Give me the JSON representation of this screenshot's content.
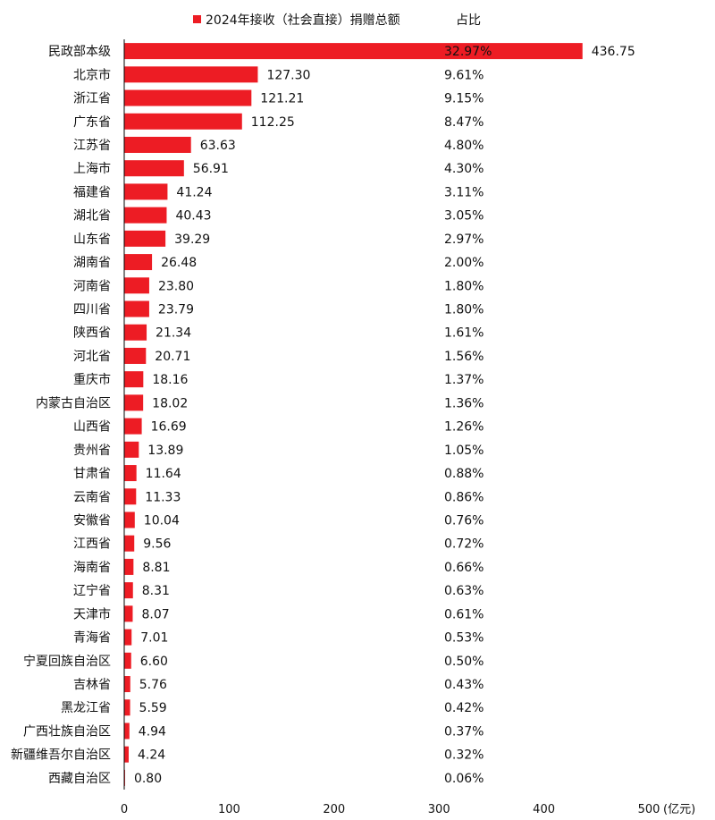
{
  "chart_data": {
    "type": "bar",
    "orientation": "horizontal",
    "legend": {
      "series_label": "2024年接收（社会直接）捐赠总额",
      "share_label": "占比",
      "position": "top"
    },
    "categories": [
      "民政部本级",
      "北京市",
      "浙江省",
      "广东省",
      "江苏省",
      "上海市",
      "福建省",
      "湖北省",
      "山东省",
      "湖南省",
      "河南省",
      "四川省",
      "陕西省",
      "河北省",
      "重庆市",
      "内蒙古自治区",
      "山西省",
      "贵州省",
      "甘肃省",
      "云南省",
      "安徽省",
      "江西省",
      "海南省",
      "辽宁省",
      "天津市",
      "青海省",
      "宁夏回族自治区",
      "吉林省",
      "黑龙江省",
      "广西壮族自治区",
      "新疆维吾尔自治区",
      "西藏自治区"
    ],
    "values": [
      436.75,
      127.3,
      121.21,
      112.25,
      63.63,
      56.91,
      41.24,
      40.43,
      39.29,
      26.48,
      23.8,
      23.79,
      21.34,
      20.71,
      18.16,
      18.02,
      16.69,
      13.89,
      11.64,
      11.33,
      10.04,
      9.56,
      8.81,
      8.31,
      8.07,
      7.01,
      6.6,
      5.76,
      5.59,
      4.94,
      4.24,
      0.8
    ],
    "value_labels": [
      "436.75",
      "127.30",
      "121.21",
      "112.25",
      "63.63",
      "56.91",
      "41.24",
      "40.43",
      "39.29",
      "26.48",
      "23.80",
      "23.79",
      "21.34",
      "20.71",
      "18.16",
      "18.02",
      "16.69",
      "13.89",
      "11.64",
      "11.33",
      "10.04",
      "9.56",
      "8.81",
      "8.31",
      "8.07",
      "7.01",
      "6.60",
      "5.76",
      "5.59",
      "4.94",
      "4.24",
      "0.80"
    ],
    "shares": [
      "32.97%",
      "9.61%",
      "9.15%",
      "8.47%",
      "4.80%",
      "4.30%",
      "3.11%",
      "3.05%",
      "2.97%",
      "2.00%",
      "1.80%",
      "1.80%",
      "1.61%",
      "1.56%",
      "1.37%",
      "1.36%",
      "1.26%",
      "1.05%",
      "0.88%",
      "0.86%",
      "0.76%",
      "0.72%",
      "0.66%",
      "0.63%",
      "0.61%",
      "0.53%",
      "0.50%",
      "0.43%",
      "0.42%",
      "0.37%",
      "0.32%",
      "0.06%"
    ],
    "xlim": [
      0,
      500
    ],
    "xticks": [
      "0",
      "100",
      "200",
      "300",
      "400",
      "500"
    ],
    "xlabel": "(亿元)",
    "bar_color": "#ed1c24"
  }
}
